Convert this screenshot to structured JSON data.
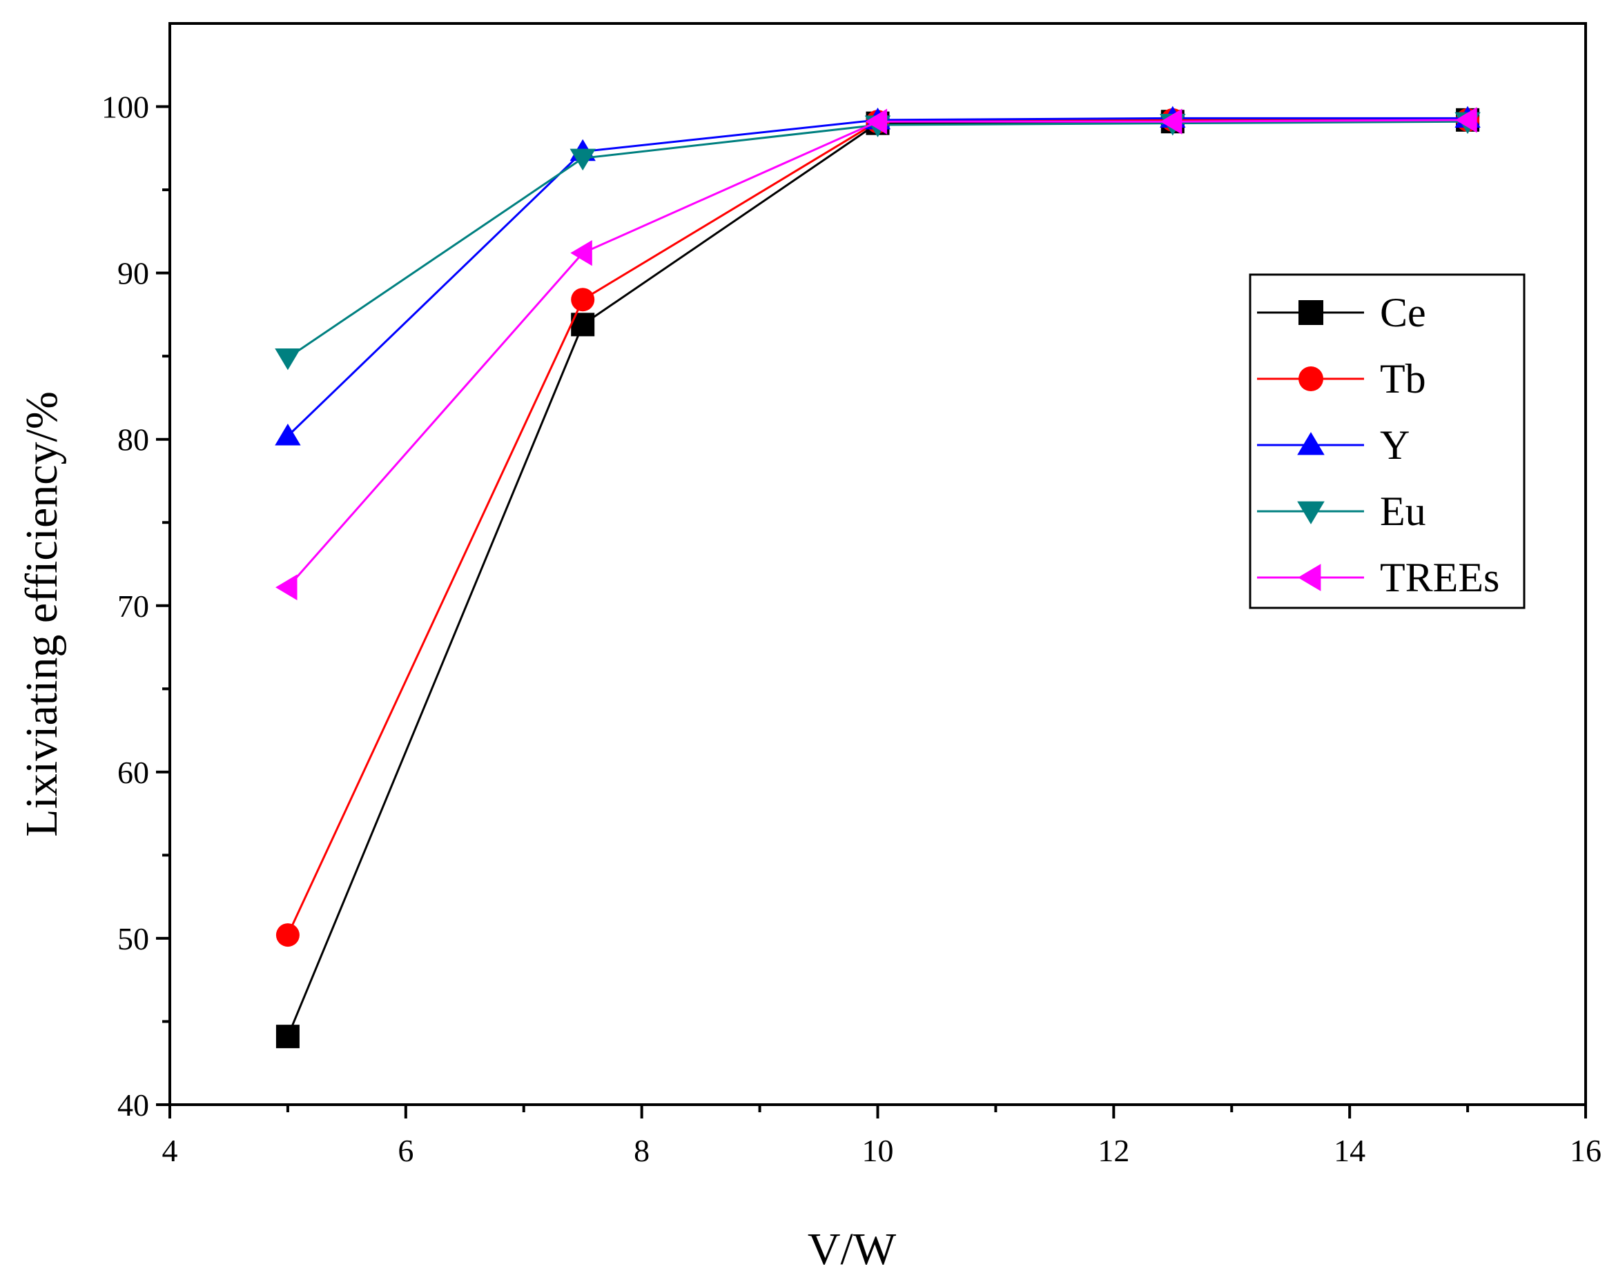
{
  "chart_data": {
    "type": "line",
    "title": "",
    "xlabel": "V/W",
    "ylabel": "Lixiviating efficiency/%",
    "xlim": [
      4,
      16
    ],
    "ylim": [
      40,
      105
    ],
    "xticks": [
      4,
      6,
      8,
      10,
      12,
      14,
      16
    ],
    "yticks": [
      40,
      50,
      60,
      70,
      80,
      90,
      100
    ],
    "grid": false,
    "legend_position": "right",
    "x": [
      5,
      7.5,
      10,
      12.5,
      15
    ],
    "series": [
      {
        "name": "Ce",
        "color": "#000000",
        "marker": "square",
        "values": [
          44.1,
          86.9,
          99.0,
          99.1,
          99.2
        ]
      },
      {
        "name": "Tb",
        "color": "#ff0000",
        "marker": "circle",
        "values": [
          50.2,
          88.4,
          99.1,
          99.2,
          99.2
        ]
      },
      {
        "name": "Y",
        "color": "#0000ff",
        "marker": "triangle-up",
        "values": [
          80.2,
          97.3,
          99.2,
          99.3,
          99.3
        ]
      },
      {
        "name": "Eu",
        "color": "#008080",
        "marker": "triangle-down",
        "values": [
          84.9,
          96.9,
          98.9,
          99.0,
          99.1
        ]
      },
      {
        "name": "TREEs",
        "color": "#ff00ff",
        "marker": "triangle-left",
        "values": [
          71.1,
          91.2,
          99.1,
          99.1,
          99.2
        ]
      }
    ]
  }
}
